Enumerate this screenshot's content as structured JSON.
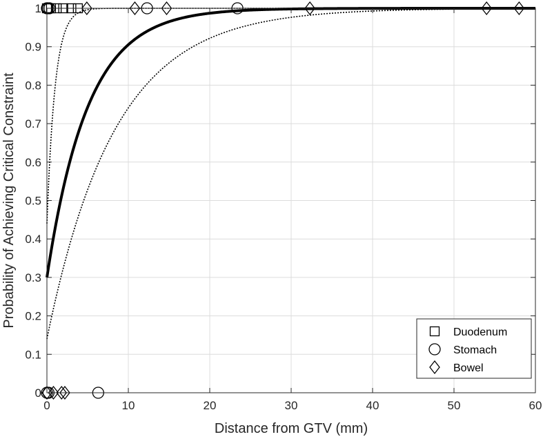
{
  "chart_data": {
    "type": "scatter",
    "xlabel": "Distance from GTV (mm)",
    "ylabel": "Probability of Achieving Critical Constraint",
    "xlim": [
      0,
      60
    ],
    "ylim": [
      0,
      1
    ],
    "x_ticks": [
      0,
      10,
      20,
      30,
      40,
      50,
      60
    ],
    "y_ticks": [
      0,
      0.1,
      0.2,
      0.3,
      0.4,
      0.5,
      0.6,
      0.7,
      0.8,
      0.9,
      1
    ],
    "x_tick_labels": [
      "0",
      "10",
      "20",
      "30",
      "40",
      "50",
      "60"
    ],
    "y_tick_labels": [
      "0",
      "0.1",
      "0.2",
      "0.3",
      "0.4",
      "0.5",
      "0.6",
      "0.7",
      "0.8",
      "0.9",
      "1"
    ],
    "grid": true,
    "legend_position": "bottom-right",
    "series": [
      {
        "name": "Duodenum",
        "marker": "square",
        "points": [
          {
            "x": 0.0,
            "y": 1
          },
          {
            "x": 0.2,
            "y": 1
          },
          {
            "x": 0.5,
            "y": 1
          },
          {
            "x": 1.2,
            "y": 1
          },
          {
            "x": 2.0,
            "y": 1
          },
          {
            "x": 3.0,
            "y": 1
          },
          {
            "x": 3.8,
            "y": 1
          }
        ]
      },
      {
        "name": "Stomach",
        "marker": "circle",
        "points": [
          {
            "x": 0.0,
            "y": 1
          },
          {
            "x": 0.1,
            "y": 1
          },
          {
            "x": 0.3,
            "y": 1
          },
          {
            "x": 12.3,
            "y": 1
          },
          {
            "x": 23.4,
            "y": 1
          },
          {
            "x": 0.0,
            "y": 0
          },
          {
            "x": 0.2,
            "y": 0
          },
          {
            "x": 6.3,
            "y": 0
          }
        ]
      },
      {
        "name": "Bowel",
        "marker": "diamond",
        "points": [
          {
            "x": 4.9,
            "y": 1
          },
          {
            "x": 10.8,
            "y": 1
          },
          {
            "x": 14.7,
            "y": 1
          },
          {
            "x": 32.3,
            "y": 1
          },
          {
            "x": 54.0,
            "y": 1
          },
          {
            "x": 58.0,
            "y": 1
          },
          {
            "x": 0.0,
            "y": 0
          },
          {
            "x": 0.8,
            "y": 0
          },
          {
            "x": 1.8,
            "y": 0
          },
          {
            "x": 2.2,
            "y": 0
          }
        ]
      }
    ],
    "curves": [
      {
        "style": "solid",
        "y0": 0.3,
        "rate": 0.2
      },
      {
        "style": "dotted",
        "y0": 0.44,
        "rate": 1.0
      },
      {
        "style": "dotted",
        "y0": 0.14,
        "rate": 0.12
      }
    ],
    "colors": {
      "axis": "#262626",
      "grid": "#dcdcdc",
      "marker": "#000000",
      "curve": "#000000"
    }
  }
}
